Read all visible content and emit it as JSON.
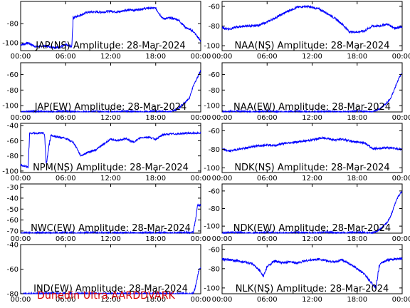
{
  "colors": {
    "trace": "#0000ff",
    "axis": "#000000",
    "footer": "#d40000"
  },
  "footer_text": "Dunedin Ultra AARDDVARK",
  "chart_data": [
    {
      "type": "line",
      "title": "JAP(NS) Amplitude: 28-Mar-2024",
      "x_ticks": [
        "00:00",
        "06:00",
        "12:00",
        "18:00",
        "00:00"
      ],
      "y_ticks": [
        -80,
        -100
      ],
      "ylim": [
        -108,
        -57
      ],
      "xlim": [
        0,
        24
      ],
      "series": [
        {
          "x": [
            0,
            1,
            2,
            3,
            4,
            5,
            6,
            6.8,
            7,
            8,
            9,
            10,
            11,
            12,
            13,
            14,
            15,
            16,
            17,
            18,
            18.5,
            19,
            20,
            21,
            21.5,
            22,
            23,
            24
          ],
          "y": [
            -102,
            -100,
            -104,
            -103,
            -104,
            -105,
            -102,
            -104,
            -74,
            -71,
            -68,
            -68,
            -68,
            -67,
            -68,
            -66,
            -66,
            -65,
            -64,
            -64,
            -70,
            -75,
            -74,
            -76,
            -80,
            -84,
            -88,
            -98
          ]
        }
      ]
    },
    {
      "type": "line",
      "title": "NAA(NS) Amplitude: 28-Mar-2024",
      "x_ticks": [
        "00:00",
        "06:00",
        "12:00",
        "18:00",
        "00:00"
      ],
      "y_ticks": [
        -60,
        -80,
        -100
      ],
      "ylim": [
        -105,
        -55
      ],
      "xlim": [
        0,
        24
      ],
      "series": [
        {
          "x": [
            0,
            1,
            2,
            3,
            4,
            5,
            6,
            7,
            8,
            9,
            10,
            11,
            12,
            13,
            14,
            15,
            16,
            17,
            18,
            19,
            20,
            21,
            22,
            23,
            24
          ],
          "y": [
            -82,
            -83,
            -81,
            -80,
            -80,
            -79,
            -76,
            -72,
            -68,
            -64,
            -61,
            -60,
            -61,
            -63,
            -67,
            -72,
            -78,
            -86,
            -86,
            -85,
            -80,
            -80,
            -78,
            -82,
            -81
          ]
        }
      ]
    },
    {
      "type": "line",
      "title": "JAP(EW) Amplitude: 28-Mar-2024",
      "x_ticks": [
        "00:00",
        "06:00",
        "12:00",
        "18:00",
        "00:00"
      ],
      "y_ticks": [
        -60,
        -80,
        -100
      ],
      "ylim": [
        -108,
        -45
      ],
      "xlim": [
        0,
        24
      ],
      "series": [
        {
          "x": [
            0,
            2,
            4,
            6,
            8,
            10,
            12,
            14,
            16,
            18,
            20,
            21,
            22,
            22.5,
            23,
            23.5,
            24
          ],
          "y": [
            -108,
            -107,
            -108,
            -107,
            -108,
            -107,
            -108,
            -107,
            -108,
            -107,
            -108,
            -104,
            -95,
            -90,
            -75,
            -65,
            -55
          ]
        }
      ]
    },
    {
      "type": "line",
      "title": "NAA(EW) Amplitude: 28-Mar-2024",
      "x_ticks": [
        "00:00",
        "06:00",
        "12:00",
        "18:00",
        "00:00"
      ],
      "y_ticks": [
        -60,
        -80,
        -100
      ],
      "ylim": [
        -108,
        -45
      ],
      "xlim": [
        0,
        24
      ],
      "series": [
        {
          "x": [
            0,
            2,
            4,
            6,
            8,
            10,
            12,
            14,
            16,
            18,
            20,
            21,
            22,
            22.5,
            23,
            23.5,
            24
          ],
          "y": [
            -108,
            -107,
            -108,
            -107,
            -108,
            -107,
            -108,
            -107,
            -108,
            -107,
            -108,
            -104,
            -96,
            -90,
            -78,
            -66,
            -58
          ]
        }
      ]
    },
    {
      "type": "line",
      "title": "NPM(NS) Amplitude: 28-Mar-2024",
      "x_ticks": [
        "00:00",
        "06:00",
        "12:00",
        "18:00",
        "00:00"
      ],
      "y_ticks": [
        -40,
        -60,
        -80,
        -100
      ],
      "ylim": [
        -102,
        -37
      ],
      "xlim": [
        0,
        24
      ],
      "series": [
        {
          "x": [
            0,
            1,
            1.2,
            3,
            3.2,
            3.4,
            4,
            5,
            6,
            7,
            7.5,
            8,
            9,
            10,
            11,
            12,
            13,
            14,
            15,
            16,
            17,
            18,
            19,
            20,
            21,
            22,
            23,
            24
          ],
          "y": [
            -92,
            -95,
            -50,
            -50,
            -52,
            -92,
            -53,
            -55,
            -57,
            -62,
            -70,
            -80,
            -75,
            -72,
            -65,
            -58,
            -60,
            -57,
            -62,
            -56,
            -55,
            -58,
            -52,
            -51,
            -51,
            -50,
            -50,
            -50
          ]
        }
      ]
    },
    {
      "type": "line",
      "title": "NDK(NS) Amplitude: 28-Mar-2024",
      "x_ticks": [
        "00:00",
        "06:00",
        "12:00",
        "18:00",
        "00:00"
      ],
      "y_ticks": [
        -60,
        -80,
        -100
      ],
      "ylim": [
        -105,
        -52
      ],
      "xlim": [
        0,
        24
      ],
      "series": [
        {
          "x": [
            0,
            1,
            2,
            3,
            4,
            5,
            6,
            7,
            8,
            9,
            10,
            11,
            12,
            13,
            14,
            15,
            16,
            17,
            18,
            19,
            20,
            21,
            22,
            23,
            24
          ],
          "y": [
            -80,
            -82,
            -80,
            -79,
            -77,
            -76,
            -75,
            -76,
            -74,
            -73,
            -72,
            -71,
            -70,
            -68,
            -68,
            -70,
            -69,
            -71,
            -72,
            -73,
            -79,
            -79,
            -78,
            -79,
            -80
          ]
        }
      ]
    },
    {
      "type": "line",
      "title": "NWC(EW) Amplitude: 28-Mar-2024",
      "x_ticks": [
        "00:00",
        "06:00",
        "12:00",
        "18:00",
        "00:00"
      ],
      "y_ticks": [
        -30,
        -40,
        -50,
        -60,
        -70
      ],
      "ylim": [
        -72,
        -27
      ],
      "xlim": [
        0,
        24
      ],
      "series": [
        {
          "x": [
            0,
            2,
            4,
            6,
            8,
            10,
            12,
            14,
            16,
            18,
            20,
            22,
            23,
            23.3,
            23.6,
            24
          ],
          "y": [
            -72,
            -71.5,
            -72,
            -71.5,
            -72,
            -71.5,
            -72,
            -71.5,
            -72,
            -71.5,
            -72,
            -71.5,
            -71,
            -60,
            -46,
            -47
          ]
        }
      ]
    },
    {
      "type": "line",
      "title": "NDK(EW) Amplitude: 28-Mar-2024",
      "x_ticks": [
        "00:00",
        "06:00",
        "12:00",
        "18:00",
        "00:00"
      ],
      "y_ticks": [
        -60,
        -80,
        -100
      ],
      "ylim": [
        -108,
        -52
      ],
      "xlim": [
        0,
        24
      ],
      "series": [
        {
          "x": [
            0,
            2,
            4,
            6,
            8,
            10,
            12,
            14,
            16,
            18,
            20,
            21,
            22,
            22.5,
            23,
            23.5,
            24
          ],
          "y": [
            -108,
            -107,
            -108,
            -107,
            -108,
            -107,
            -108,
            -107,
            -108,
            -107,
            -108,
            -104,
            -96,
            -88,
            -76,
            -66,
            -60
          ]
        }
      ]
    },
    {
      "type": "line",
      "title": "IND(EW) Amplitude: 28-Mar-2024",
      "x_ticks": [
        "00:00",
        "06:00",
        "12:00",
        "18:00",
        "00:00"
      ],
      "y_ticks": [
        -40,
        -60,
        -80
      ],
      "ylim": [
        -80,
        -40
      ],
      "xlim": [
        0,
        24
      ],
      "series": [
        {
          "x": [
            0,
            2,
            4,
            6,
            8,
            10,
            12,
            14,
            16,
            18,
            20,
            22,
            23,
            23.4,
            23.7,
            24
          ],
          "y": [
            -80,
            -80,
            -80,
            -80,
            -80,
            -80,
            -80,
            -80,
            -80,
            -80,
            -80,
            -80,
            -80,
            -72,
            -62,
            -58
          ]
        }
      ]
    },
    {
      "type": "line",
      "title": "NLK(NS) Amplitude: 28-Mar-2024",
      "x_ticks": [
        "00:00",
        "06:00",
        "12:00",
        "18:00",
        "00:00"
      ],
      "y_ticks": [
        -60,
        -80,
        -100
      ],
      "ylim": [
        -106,
        -55
      ],
      "xlim": [
        0,
        24
      ],
      "series": [
        {
          "x": [
            0,
            1,
            2,
            3,
            4,
            5,
            5.5,
            6,
            7,
            8,
            9,
            10,
            11,
            12,
            13,
            14,
            15,
            16,
            17,
            18,
            19,
            20,
            20.5,
            21,
            22,
            23,
            24
          ],
          "y": [
            -70,
            -71,
            -72,
            -73,
            -75,
            -82,
            -88,
            -78,
            -72,
            -74,
            -73,
            -74,
            -72,
            -71,
            -70,
            -72,
            -73,
            -71,
            -75,
            -80,
            -86,
            -96,
            -100,
            -75,
            -71,
            -70,
            -70
          ]
        }
      ]
    }
  ]
}
